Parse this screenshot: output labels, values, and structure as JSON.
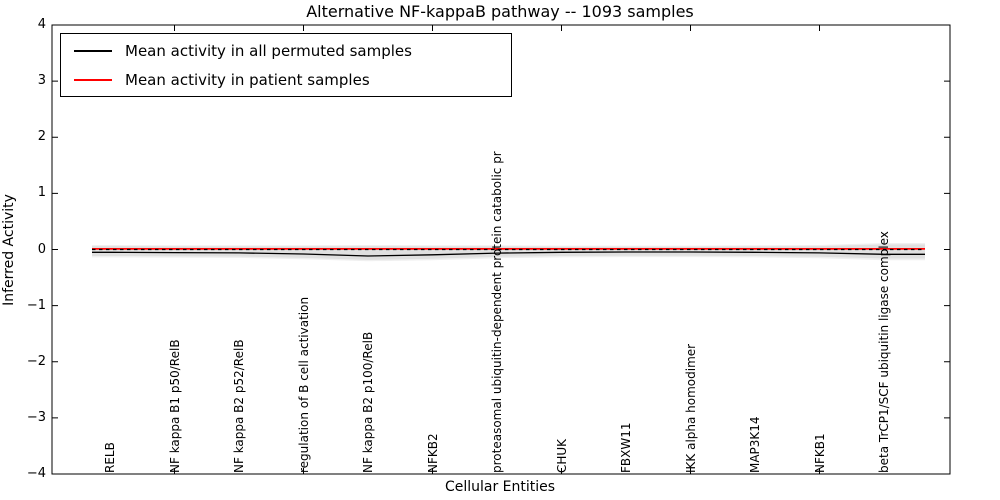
{
  "chart_data": {
    "type": "line",
    "title": "Alternative NF-kappaB pathway -- 1093 samples",
    "xlabel": "Cellular Entities",
    "ylabel": "Inferred Activity",
    "ylim": [
      -4,
      4
    ],
    "yticks": [
      -4,
      -3,
      -2,
      -1,
      0,
      1,
      2,
      3,
      4
    ],
    "grid": false,
    "legend_position": "upper-left",
    "xticks_shown_at": [
      1,
      3,
      5,
      7,
      9,
      11
    ],
    "categories": [
      "RELB",
      "NF kappa B1 p50/RelB",
      "NF kappa B2 p52/RelB",
      "regulation of B cell activation",
      "NF kappa B2 p100/RelB",
      "NFKB2",
      "proteasomal ubiquitin-dependent protein catabolic pr",
      "CHUK",
      "FBXW11",
      "IKK alpha homodimer",
      "MAP3K14",
      "NFKB1",
      "beta TrCP1/SCF ubiquitin ligase complex"
    ],
    "series": [
      {
        "name": "Mean activity in all permuted samples",
        "color": "#000000",
        "values": [
          -0.05,
          -0.055,
          -0.06,
          -0.08,
          -0.115,
          -0.095,
          -0.065,
          -0.05,
          -0.045,
          -0.045,
          -0.05,
          -0.06,
          -0.085
        ]
      },
      {
        "name": "Mean activity in patient samples",
        "color": "#ff0000",
        "values": [
          0.01,
          0.01,
          0.01,
          0.01,
          0.01,
          0.01,
          0.01,
          0.01,
          0.01,
          0.01,
          0.01,
          0.01,
          0.01
        ]
      }
    ],
    "zero_line": {
      "value": 0,
      "style": "dashed",
      "color": "#000000"
    },
    "band_inner": {
      "color": "#e0e0e0",
      "top": [
        0.06,
        0.055,
        0.055,
        0.055,
        0.06,
        0.055,
        0.055,
        0.05,
        0.05,
        0.05,
        0.055,
        0.06,
        0.09
      ],
      "bottom": [
        -0.115,
        -0.12,
        -0.125,
        -0.15,
        -0.185,
        -0.165,
        -0.13,
        -0.115,
        -0.11,
        -0.11,
        -0.115,
        -0.13,
        -0.16
      ]
    },
    "band_outer": {
      "color": "#f0f0f0",
      "top": [
        0.08,
        0.075,
        0.075,
        0.075,
        0.08,
        0.075,
        0.075,
        0.07,
        0.07,
        0.07,
        0.075,
        0.08,
        0.115
      ],
      "bottom": [
        -0.14,
        -0.145,
        -0.15,
        -0.175,
        -0.21,
        -0.19,
        -0.155,
        -0.14,
        -0.135,
        -0.135,
        -0.14,
        -0.155,
        -0.19
      ]
    }
  }
}
